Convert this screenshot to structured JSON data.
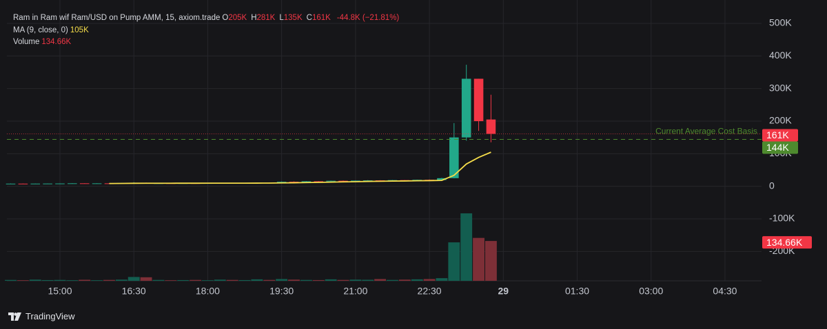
{
  "chart_data": {
    "type": "candlestick",
    "title": "Ram in Ram wif Ram/USD on Pump AMM, 15, axiom.trade",
    "header_values": [
      {
        "key": "O",
        "label": "205K"
      },
      {
        "key": "H",
        "label": "281K"
      },
      {
        "key": "L",
        "label": "135K"
      },
      {
        "key": "C",
        "label": "161K"
      }
    ],
    "change": "-44.8K (−21.81%)",
    "categories": [
      null,
      null,
      null,
      null,
      "15:00",
      null,
      null,
      null,
      null,
      null,
      "16:30",
      null,
      null,
      null,
      null,
      null,
      "18:00",
      null,
      null,
      null,
      null,
      null,
      "19:30",
      null,
      null,
      null,
      null,
      null,
      "21:00",
      null,
      null,
      null,
      null,
      null,
      "22:30",
      null,
      null,
      null,
      null,
      null,
      "29",
      null,
      null,
      null,
      null,
      null,
      "01:30",
      null,
      null,
      null,
      null,
      null,
      "03:00",
      null,
      null,
      null,
      null,
      null,
      "04:30",
      null
    ],
    "open": [
      8000,
      8200,
      8000,
      8300,
      8500,
      8700,
      9200,
      8800,
      9100,
      8900,
      10200,
      11000,
      9300,
      9500,
      9400,
      9600,
      9300,
      9800,
      10100,
      9900,
      10600,
      10900,
      10700,
      14000,
      13000,
      15500,
      14600,
      17000,
      16200,
      17600,
      18200,
      16500,
      19000,
      18000,
      20000,
      19200,
      25000,
      150000,
      330000,
      205000,
      null,
      null,
      null,
      null,
      null,
      null,
      null,
      null,
      null,
      null,
      null,
      null,
      null,
      null,
      null,
      null,
      null,
      null,
      null,
      null
    ],
    "high": [
      8500,
      8600,
      8400,
      8800,
      9000,
      9500,
      9400,
      9300,
      9600,
      10500,
      12500,
      11400,
      9700,
      9900,
      9800,
      10000,
      9900,
      10400,
      10600,
      10800,
      11200,
      11400,
      15000,
      15000,
      16000,
      16000,
      17500,
      17800,
      18000,
      19000,
      18700,
      19500,
      19400,
      20500,
      21000,
      26000,
      194000,
      373000,
      330000,
      281000,
      null,
      null,
      null,
      null,
      null,
      null,
      null,
      null,
      null,
      null,
      null,
      null,
      null,
      null,
      null,
      null,
      null,
      null,
      null,
      null
    ],
    "low": [
      7500,
      7900,
      7800,
      8100,
      8200,
      8400,
      8600,
      8500,
      8700,
      8800,
      9800,
      9000,
      8900,
      9100,
      9000,
      9200,
      9100,
      9500,
      9700,
      9700,
      10300,
      10400,
      10500,
      12000,
      12800,
      14000,
      14400,
      15800,
      15900,
      17200,
      16000,
      16400,
      17500,
      17800,
      18500,
      19000,
      24500,
      140000,
      170000,
      135000,
      null,
      null,
      null,
      null,
      null,
      null,
      null,
      null,
      null,
      null,
      null,
      null,
      null,
      null,
      null,
      null,
      null,
      null,
      null,
      null
    ],
    "close": [
      8200,
      8000,
      8300,
      8500,
      8700,
      9200,
      8800,
      9100,
      8900,
      10200,
      11000,
      9300,
      9500,
      9400,
      9600,
      9300,
      9800,
      10100,
      9900,
      10600,
      10900,
      10700,
      14000,
      13000,
      15500,
      14600,
      17000,
      16200,
      17600,
      18200,
      16500,
      19000,
      18000,
      20000,
      19200,
      25000,
      150000,
      330000,
      200000,
      161000,
      null,
      null,
      null,
      null,
      null,
      null,
      null,
      null,
      null,
      null,
      null,
      null,
      null,
      null,
      null,
      null,
      null,
      null,
      null,
      null
    ],
    "up_color": "#22a88a",
    "down_color": "#f23645",
    "ma": {
      "label": "MA (9, close, 0)",
      "value_label": "105K",
      "color": "#f5dd4a",
      "values": [
        null,
        null,
        null,
        null,
        null,
        null,
        null,
        null,
        8633,
        8856,
        9189,
        9300,
        9422,
        9444,
        9489,
        9500,
        9567,
        9689,
        9644,
        9633,
        9789,
        9922,
        10456,
        10844,
        11533,
        12033,
        12833,
        13522,
        14178,
        15000,
        15389,
        16078,
        16411,
        16989,
        17389,
        18111,
        33722,
        68433,
        88633,
        104689,
        null,
        null,
        null,
        null,
        null,
        null,
        null,
        null,
        null,
        null,
        null,
        null,
        null,
        null,
        null,
        null,
        null,
        null,
        null,
        null
      ]
    },
    "volume": {
      "label": "Volume",
      "value_label": "134.66K",
      "ylim": [
        0,
        400000
      ],
      "up_color": "#135e50",
      "down_color": "#7d2f37",
      "values": [
        3000,
        2000,
        4000,
        2500,
        3000,
        2000,
        3500,
        2000,
        3000,
        4000,
        13000,
        12000,
        3000,
        2000,
        2500,
        3000,
        2000,
        4000,
        3000,
        2500,
        5000,
        3000,
        6000,
        4000,
        3000,
        2500,
        5000,
        3000,
        4000,
        3500,
        6000,
        3000,
        4000,
        5000,
        6000,
        9000,
        130000,
        228000,
        145000,
        134660,
        null,
        null,
        null,
        null,
        null,
        null,
        null,
        null,
        null,
        null,
        null,
        null,
        null,
        null,
        null,
        null,
        null,
        null,
        null,
        null
      ]
    },
    "ylim": [
      -290000,
      540000
    ],
    "yticks": [
      {
        "value": 500000,
        "label": "500K"
      },
      {
        "value": 400000,
        "label": "400K"
      },
      {
        "value": 300000,
        "label": "300K"
      },
      {
        "value": 200000,
        "label": "200K"
      },
      {
        "value": 100000,
        "label": "100K"
      },
      0,
      {
        "value": -100000,
        "label": "-100K"
      },
      {
        "value": -200000,
        "label": "-200K"
      }
    ],
    "grid": true,
    "last_price": {
      "value": 161000,
      "label": "161K"
    },
    "cost_basis": {
      "value": 144000,
      "label": "144K",
      "text": "Current Average Cost Basis",
      "color": "#4e8a2e"
    }
  },
  "footer": {
    "brand": "TradingView"
  }
}
